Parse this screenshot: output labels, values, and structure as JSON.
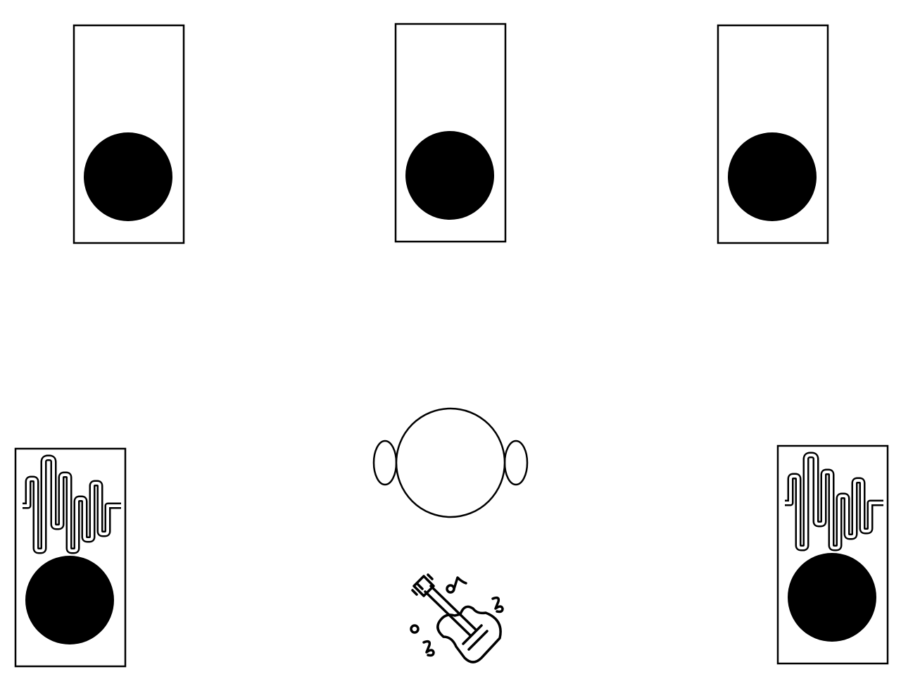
{
  "colors": {
    "background": "#ffffff",
    "stroke": "#000000",
    "woofer": "#000000"
  },
  "diagram": {
    "speakers": [
      {
        "id": "front-left",
        "icon": "speaker-icon",
        "has_sound_waves": false
      },
      {
        "id": "front-center",
        "icon": "speaker-icon",
        "has_sound_waves": false
      },
      {
        "id": "front-right",
        "icon": "speaker-icon",
        "has_sound_waves": false
      },
      {
        "id": "rear-left",
        "icon": "speaker-icon",
        "has_sound_waves": true
      },
      {
        "id": "rear-right",
        "icon": "speaker-icon",
        "has_sound_waves": true
      }
    ],
    "listener": {
      "icon": "listener-head-icon"
    },
    "instrument": {
      "icon": "electric-guitar-icon"
    }
  }
}
